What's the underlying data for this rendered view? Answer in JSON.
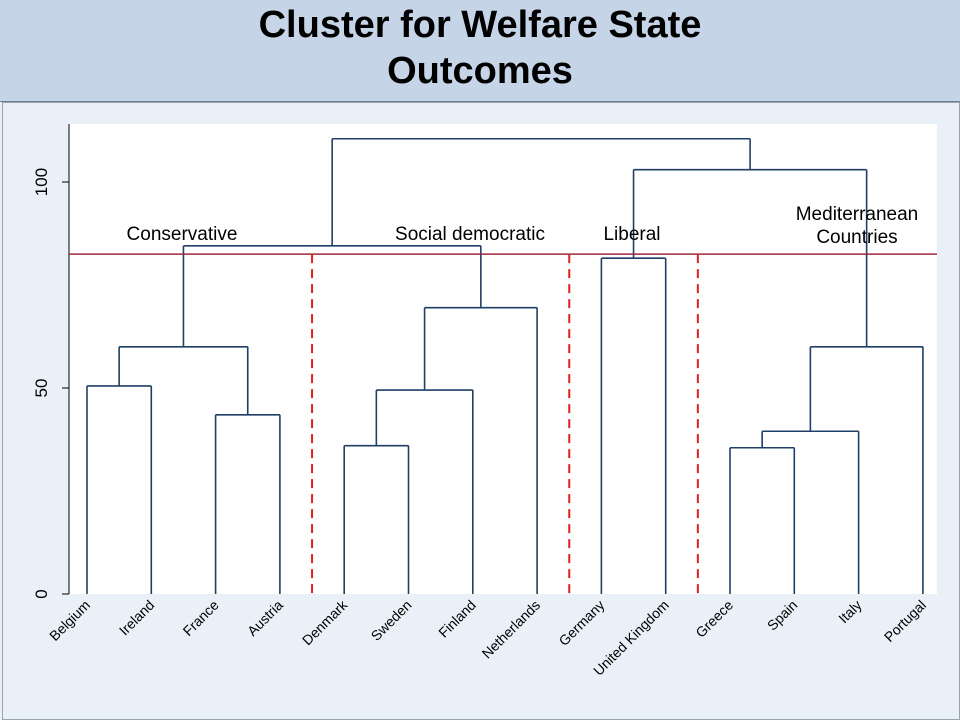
{
  "slide": {
    "title_line1": "Cluster for Welfare State",
    "title_line2": "Outcomes"
  },
  "colors": {
    "tree": "#1f3f66",
    "cut_line": "#a0283c",
    "dashed": "#e02020",
    "plot_bg": "#ffffff",
    "header_bg": "#c5d4e6"
  },
  "chart_data": {
    "type": "dendrogram",
    "ylim": [
      0,
      115
    ],
    "yticks": [
      0,
      50,
      100
    ],
    "cut_height": 82.5,
    "leaves": [
      "Belgium",
      "Ireland",
      "France",
      "Austria",
      "Denmark",
      "Sweden",
      "Finland",
      "Netherlands",
      "Germany",
      "United Kingdom",
      "Greece",
      "Spain",
      "Italy",
      "Portugal"
    ],
    "merges": [
      {
        "left": "Belgium",
        "right": "Ireland",
        "height": 50.5
      },
      {
        "left": "France",
        "right": "Austria",
        "height": 43.5
      },
      {
        "left": "Belgium+Ireland",
        "right": "France+Austria",
        "height": 60
      },
      {
        "left": "Denmark",
        "right": "Sweden",
        "height": 36
      },
      {
        "left": "Denmark+Sweden",
        "right": "Finland",
        "height": 49.5
      },
      {
        "left": "Denmark+Sweden+Finland",
        "right": "Netherlands",
        "height": 69.5
      },
      {
        "left": "Conservative",
        "right": "Social democratic",
        "height": 84.5
      },
      {
        "left": "Germany",
        "right": "United Kingdom",
        "height": 81.5
      },
      {
        "left": "Greece",
        "right": "Spain",
        "height": 35.5
      },
      {
        "left": "Greece+Spain",
        "right": "Italy",
        "height": 39.5
      },
      {
        "left": "Greece+Spain+Italy",
        "right": "Portugal",
        "height": 60
      },
      {
        "left": "Liberal",
        "right": "Mediterranean",
        "height": 103
      },
      {
        "left": "all-left",
        "right": "all-right",
        "height": 110.5
      }
    ],
    "cluster_labels": [
      {
        "text": "Conservative"
      },
      {
        "text": "Social democratic"
      },
      {
        "text": "Liberal"
      },
      {
        "text": "Mediterranean",
        "text2": "Countries"
      }
    ]
  }
}
